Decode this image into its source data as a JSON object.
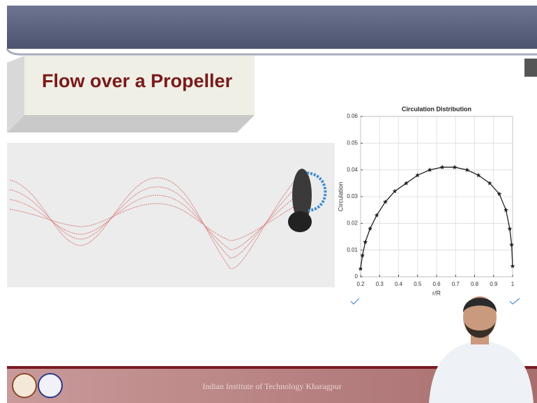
{
  "slide": {
    "title": "Flow over a Propeller",
    "footer": "Indian Institute of Technology Kharagpur"
  },
  "chart_data": {
    "type": "line",
    "title": "Circulation Distribution",
    "x_label": "r/R",
    "y_label": "Circulation",
    "x": [
      0.2,
      0.21,
      0.225,
      0.25,
      0.285,
      0.33,
      0.38,
      0.44,
      0.5,
      0.565,
      0.63,
      0.695,
      0.76,
      0.82,
      0.88,
      0.93,
      0.965,
      0.985,
      0.995,
      1.0
    ],
    "values": [
      0.003,
      0.008,
      0.013,
      0.018,
      0.023,
      0.028,
      0.032,
      0.035,
      0.038,
      0.04,
      0.041,
      0.041,
      0.04,
      0.038,
      0.035,
      0.031,
      0.025,
      0.018,
      0.012,
      0.004
    ],
    "color": "#222222",
    "marker": "star",
    "xlim": [
      0.2,
      1
    ],
    "xticks": [
      0.2,
      0.3,
      0.4,
      0.5,
      0.6,
      0.7,
      0.8,
      0.9,
      1
    ],
    "ylim": [
      0,
      0.06
    ],
    "yticks": [
      0,
      0.01,
      0.02,
      0.03,
      0.04,
      0.05,
      0.06
    ],
    "grid": true
  }
}
